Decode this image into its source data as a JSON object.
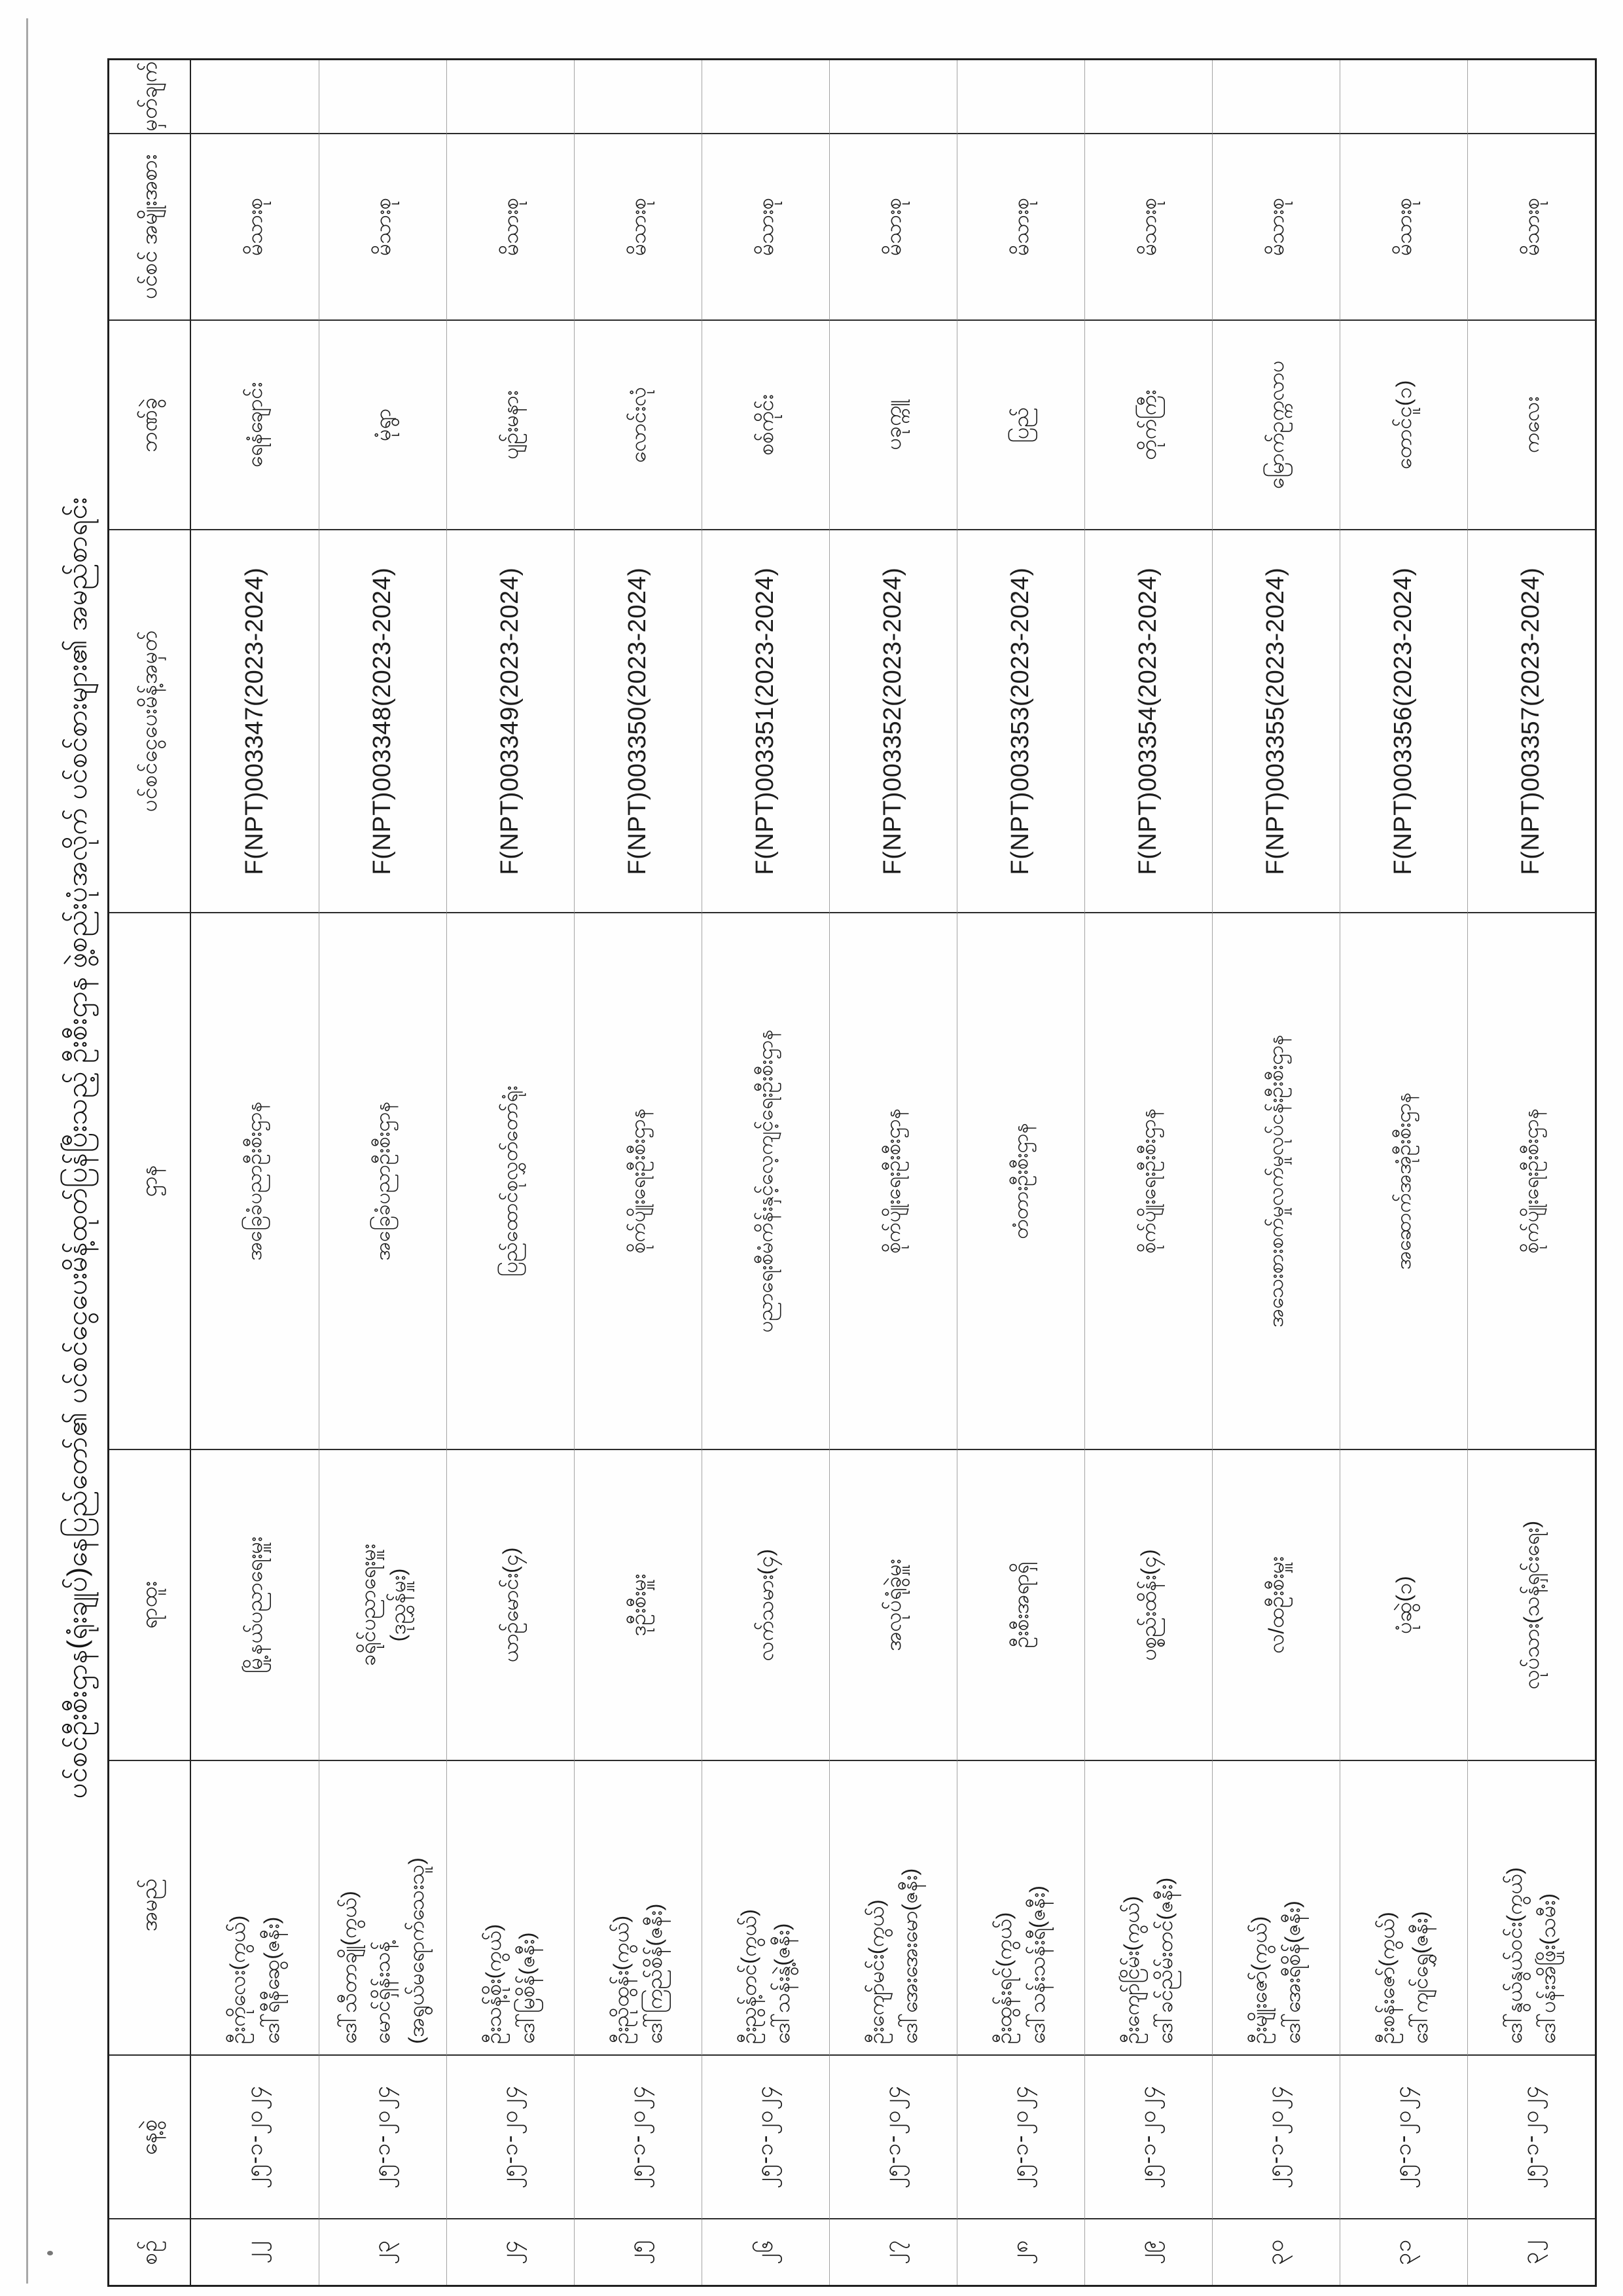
{
  "page": {
    "title": "ပင်စင်ဦးစီးဌာန(ရုံးချုပ်)နေပြည်တော်၏ ပင်စင်ငွေပေးမိန့်ထုတ်ပြန်ပြီးသည့် ဦးစီးဌာန ဖွဲ့စည်းပုံအလိုက် ပင်စင်စားများ၏ အမည်စာရင်း"
  },
  "table": {
    "columns": [
      {
        "key": "serial",
        "label": "စဉ်"
      },
      {
        "key": "date",
        "label": "နေ့စွဲ"
      },
      {
        "key": "name",
        "label": "အမည်"
      },
      {
        "key": "position",
        "label": "ရာထူး"
      },
      {
        "key": "department",
        "label": "ဌာန"
      },
      {
        "key": "order_no",
        "label": "ပင်စင်ငွေပေးမိန့်အမှတ်"
      },
      {
        "key": "branch",
        "label": "ဘဏ်ခွဲ"
      },
      {
        "key": "pension_type",
        "label": "ပင်စင် အမျိုးအစား"
      },
      {
        "key": "remark",
        "label": "မှတ်ချက်"
      }
    ],
    "rows": [
      {
        "serial": "၂၂",
        "date": "၂၅-၁-၂၀၂၄",
        "name": [
          "ဦးကိုလေး(ကွယ်)",
          "ဒေါ်ရီနီဆွေ(ဇနီး)"
        ],
        "position": [
          "မြို့နယ်ပညာရေးမှူး"
        ],
        "department": "အခြေခံပညာဦးစီးဌာန",
        "order_no": "F(NPT)003347(2023-2024)",
        "branch": "ရေနံချောင်း",
        "pension_type": "မိသားစု",
        "remark": ""
      },
      {
        "serial": "၂၃",
        "date": "၂၅-၁-၂၀၂၄",
        "name": [
          "ဒေါ်သီတာချို(ကွယ်)",
          "မောင်ရှိန်းသန့်",
          "(အရွယ်မရောက်သေးသူ)"
        ],
        "position": [
          "ခရိုင်ပညာရေးမှူး",
          "(ဒုညွှန်မှူး)"
        ],
        "department": "အခြေခံပညာဦးစီးဌာန",
        "order_no": "F(NPT)003348(2023-2024)",
        "branch": "မုံရွာ",
        "pension_type": "မိသားစု",
        "remark": ""
      },
      {
        "serial": "၂၄",
        "date": "၂၅-၁-၂၀၂၄",
        "name": [
          "ဦးသန့်စိုး(ကွယ်)",
          "ဒေါ်မြစိန်(ဇနီး)"
        ],
        "position": [
          "ယာဉ်မောင်း(၄)"
        ],
        "department": "ပြည်ထောင်စုလွှတ်တော်ရုံး",
        "order_no": "F(NPT)003349(2023-2024)",
        "branch": "ပျဉ်းမနား",
        "pension_type": "မိသားစု",
        "remark": ""
      },
      {
        "serial": "၂၅",
        "date": "၂၅-၁-၂၀၂၄",
        "name": [
          "ဦးညိုထွန်း(ကွယ်)",
          "ဒေါ်ကြည်စိန်(ဇနီး)"
        ],
        "position": [
          "ဒုဦးစီးမှူး"
        ],
        "department": "စိုက်ပျိုးရေးဦးစီးဌာန",
        "order_no": "F(NPT)003350(2023-2024)",
        "branch": "လောင်းလုံ",
        "pension_type": "မိသားစု",
        "remark": ""
      },
      {
        "serial": "၂၆",
        "date": "၂၅-၁-၂၀၂၄",
        "name": [
          "ဦးညွန့်တင်(ကွယ်)",
          "ဒေါ်သန်းနွဲ့(ဇနီး)"
        ],
        "position": [
          "လက်သမား(၄)"
        ],
        "department": "ပညာရေးစီမံကိန်းနှင့်လေ့ကျင့်ရေးဦးစီးဌာန",
        "order_no": "F(NPT)003351(2023-2024)",
        "branch": "စစ်ကိုင်း",
        "pension_type": "မိသားစု",
        "remark": ""
      },
      {
        "serial": "၂၇",
        "date": "၂၅-၁-၂၀၂၄",
        "name": [
          "ဦးကျော်မင်း(ကွယ်)",
          "ဒေါ်အေးအေးမော(ဇနီး)"
        ],
        "position": [
          "အလုပ်ရုံခွဲမှူး"
        ],
        "department": "စိုက်ပျိုးရေးဦးစီးဌာန",
        "order_no": "F(NPT)003352(2023-2024)",
        "branch": "ပခုက္ကူ",
        "pension_type": "မိသားစု",
        "remark": ""
      },
      {
        "serial": "၂၈",
        "date": "၂၅-၁-၂၀၂၄",
        "name": [
          "ဦးထွန်းရင်(ကွယ်)",
          "ဒေါ်သန်းသန်းရီ(ဇနီး)"
        ],
        "position": [
          "ဦးစီးအရာရှိ"
        ],
        "department": "တံတားဦးစီးဌာန",
        "order_no": "F(NPT)003353(2023-2024)",
        "branch": "ပြည်",
        "pension_type": "မိသားစု",
        "remark": ""
      },
      {
        "serial": "၂၉",
        "date": "၂၅-၁-၂၀၂၄",
        "name": [
          "ဦးကျော်ငြိမ်း(ကွယ်)",
          "ဒေါ်ခင်ညိမ်းတင်(ဇနီး)"
        ],
        "position": [
          "ပစ္စည်းထိန်း(၄)"
        ],
        "department": "စိုက်ပျိုးရေးဦးစီးဌာန",
        "order_no": "F(NPT)003354(2023-2024)",
        "branch": "တိုက်ကြီး",
        "pension_type": "မိသားစု",
        "remark": ""
      },
      {
        "serial": "၃၀",
        "date": "၂၅-၁-၂၀၂၄",
        "name": [
          "ဦးမျိုးဇော်(ကွယ်)",
          "ဒေါ်အေးရီစိန်(ဇနီး)"
        ],
        "position": [
          "လ/ထဦးစီးမှူး"
        ],
        "department": "အသေးစားစက်မှုလက်မှုလုပ်ငန်းဦးစီးဌာန",
        "order_no": "F(NPT)003355(2023-2024)",
        "branch": "မြောက်ဥက္ကလာပ",
        "pension_type": "မိသားစု",
        "remark": ""
      },
      {
        "serial": "၃၁",
        "date": "၂၅-၁-၂၀၂၄",
        "name": [
          "ဦးစန်းဇော်(ကွယ်)",
          "ဒေါ်ကျင်ရွှေ(ဇနီး)"
        ],
        "position": [
          "ပုံဆွဲ(၁)"
        ],
        "department": "အဆောက်အအုံဦးစီးဌာန",
        "order_no": "F(NPT)003356(2023-2024)",
        "branch": "တောင်ငူ(၁)",
        "pension_type": "မိသားစု",
        "remark": ""
      },
      {
        "serial": "၃၂",
        "date": "၂၅-၁-၂၀၂၄",
        "name": [
          "ဒေါ်နွယ်နွယ်ဝင်း(ကွယ်)",
          "ဒေါ်ပန်းအိဖြိုး(သမီး)"
        ],
        "position": [
          "လုပ်သား(သန့်ရှင်းရေး)"
        ],
        "department": "စိုက်ပျိုးရေးဦးစီးဌာန",
        "order_no": "F(NPT)003357(2023-2024)",
        "branch": "ကလေး",
        "pension_type": "မိသားစု",
        "remark": ""
      }
    ]
  },
  "colors": {
    "ink": "#1c1c1c",
    "grid_dark": "#2b2b2b",
    "grid_light": "#a3a3a3",
    "paper": "#fefefe"
  }
}
